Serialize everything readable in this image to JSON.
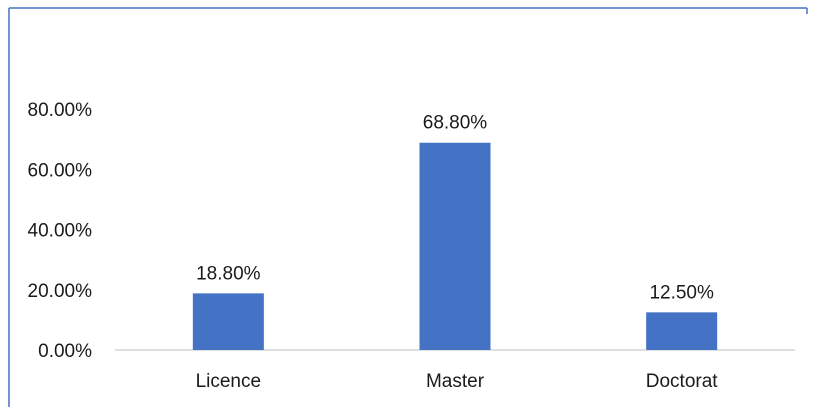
{
  "chart_data": {
    "type": "bar",
    "categories": [
      "Licence",
      "Master",
      "Doctorat"
    ],
    "values": [
      18.8,
      68.8,
      12.5
    ],
    "value_labels": [
      "18.80%",
      "68.80%",
      "12.50%"
    ],
    "ylim": [
      0,
      80
    ],
    "yticks": [
      0,
      20,
      40,
      60,
      80
    ],
    "ytick_labels": [
      "0.00%",
      "20.00%",
      "40.00%",
      "60.00%",
      "80.00%"
    ],
    "title": "",
    "xlabel": "",
    "ylabel": "",
    "grid": false,
    "legend": "none",
    "colors": {
      "bar": "#4472C4",
      "frame": "#4472C4",
      "axis": "#BFBFBF",
      "text": "#1a1a1a"
    }
  }
}
